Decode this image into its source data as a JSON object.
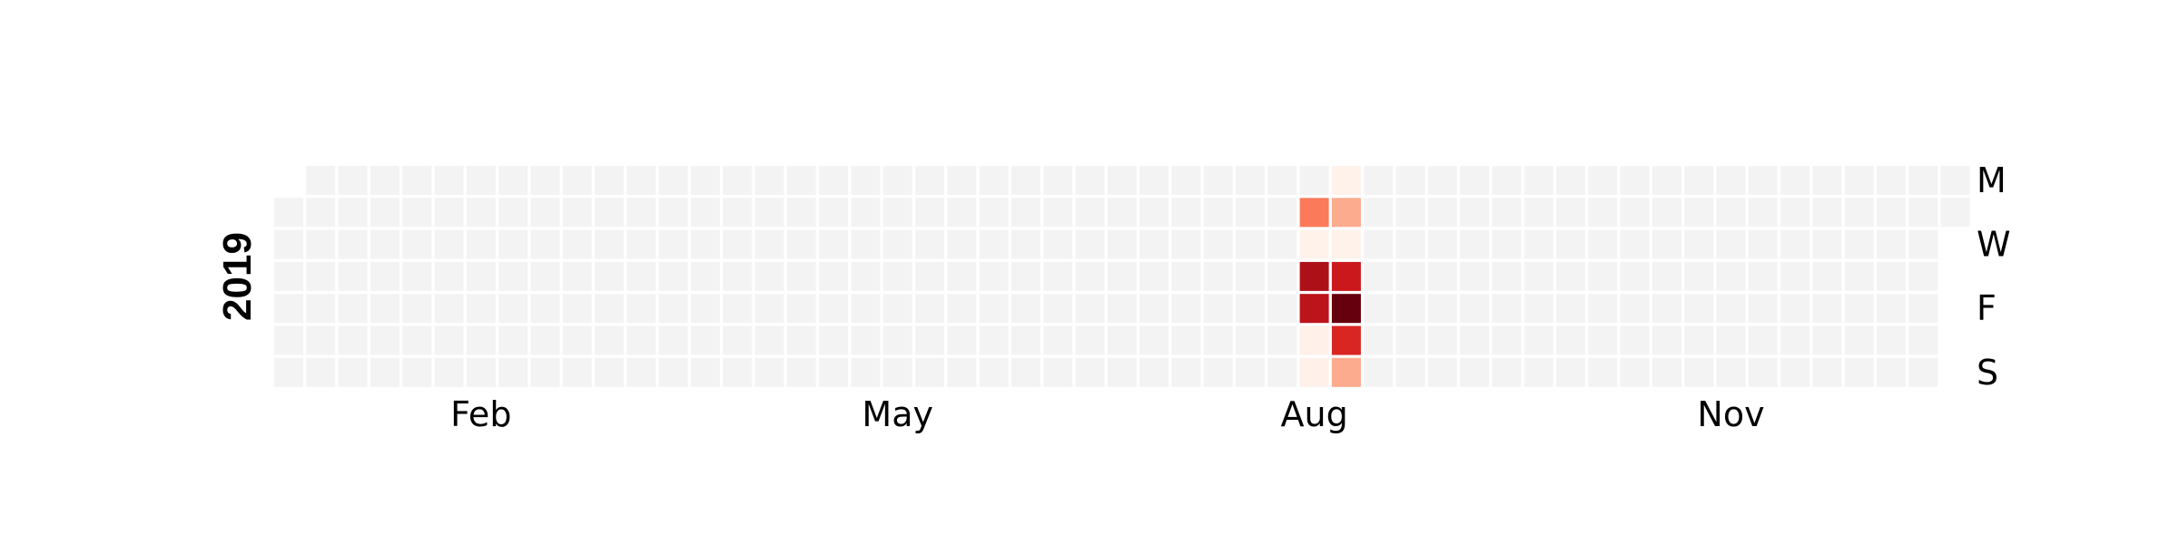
{
  "chart_data": {
    "type": "heatmap",
    "title": "",
    "year_label": "2019",
    "month_ticks": [
      "Feb",
      "May",
      "Aug",
      "Nov"
    ],
    "weekday_ticks": [
      "M",
      "W",
      "F",
      "S"
    ],
    "colormap": "Reds",
    "empty_color": "#f3f3f3",
    "cell_border_color": "#ffffff",
    "x_unit": "week of year",
    "y_unit": "day of week",
    "grid": false,
    "legend": "none",
    "values": [
      {
        "date": "2019-08-13",
        "intensity": 0.45
      },
      {
        "date": "2019-08-14",
        "intensity": 0.02
      },
      {
        "date": "2019-08-15",
        "intensity": 0.85
      },
      {
        "date": "2019-08-16",
        "intensity": 0.8
      },
      {
        "date": "2019-08-17",
        "intensity": 0.03
      },
      {
        "date": "2019-08-18",
        "intensity": 0.03
      },
      {
        "date": "2019-08-19",
        "intensity": 0.02
      },
      {
        "date": "2019-08-20",
        "intensity": 0.3
      },
      {
        "date": "2019-08-21",
        "intensity": 0.02
      },
      {
        "date": "2019-08-22",
        "intensity": 0.75
      },
      {
        "date": "2019-08-23",
        "intensity": 1.0
      },
      {
        "date": "2019-08-24",
        "intensity": 0.7
      },
      {
        "date": "2019-08-25",
        "intensity": 0.3
      }
    ]
  }
}
